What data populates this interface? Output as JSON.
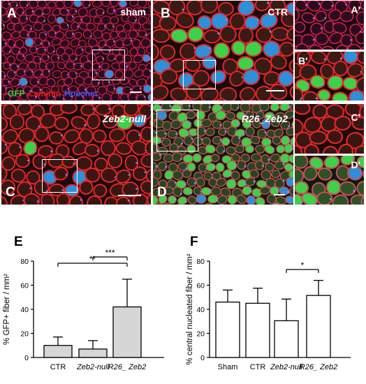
{
  "panels": {
    "A": {
      "letter": "A",
      "tag": "sham"
    },
    "B": {
      "letter": "B",
      "tag": "CTR"
    },
    "A_prime": {
      "letter": "A'"
    },
    "B_prime": {
      "letter": "B'"
    },
    "C": {
      "letter": "C",
      "tag": "Zeb2-null"
    },
    "D": {
      "letter": "D",
      "tag": "R26_Zeb2"
    },
    "C_prime": {
      "letter": "C'"
    },
    "D_prime": {
      "letter": "D'"
    }
  },
  "stain_legend": {
    "gfp": "GFP",
    "gfp_color": "#2ecc40",
    "laminin": "Laminin",
    "laminin_color": "#e0201a",
    "hoechst": "Hoechst",
    "hoechst_color": "#3a55ff"
  },
  "chart_data": [
    {
      "panel": "E",
      "type": "bar",
      "ylabel": "% GFP+ fiber / mm²",
      "categories": [
        "CTR",
        "Zeb2-null",
        "R26_ Zeb2"
      ],
      "values": [
        10,
        7,
        42
      ],
      "errors": [
        7,
        7,
        23
      ],
      "ylim": [
        0,
        80
      ],
      "yticks": [
        0,
        20,
        40,
        60,
        80
      ],
      "bar_color": "#d6d6d6",
      "significance": [
        {
          "from": 0,
          "to": 2,
          "label": "**"
        },
        {
          "from": 1,
          "to": 2,
          "label": "***"
        }
      ]
    },
    {
      "panel": "F",
      "type": "bar",
      "ylabel": "% central nucleated fiber / mm²",
      "categories": [
        "Sham",
        "CTR",
        "Zeb2-null",
        "R26_ Zeb2"
      ],
      "values": [
        46,
        45,
        30.5,
        51.5
      ],
      "errors": [
        10,
        12.5,
        18,
        12.5
      ],
      "ylim": [
        0,
        80
      ],
      "yticks": [
        0,
        20,
        40,
        60,
        80
      ],
      "bar_color": "#ffffff",
      "significance": [
        {
          "from": 2,
          "to": 3,
          "label": "*"
        }
      ]
    }
  ]
}
